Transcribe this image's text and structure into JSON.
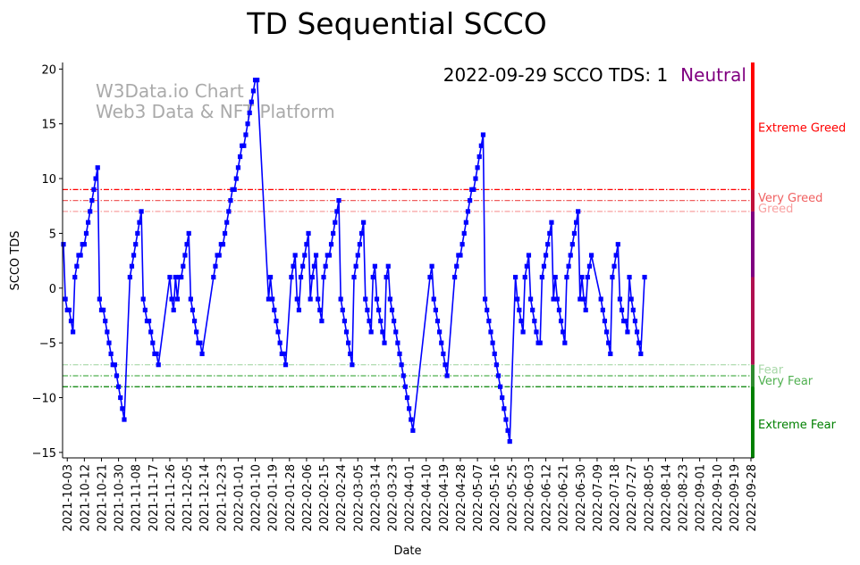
{
  "chart_data": {
    "type": "line",
    "title": "TD Sequential SCCO",
    "xlabel": "Date",
    "ylabel": "SCCO TDS",
    "ylim": [
      -15.5,
      20.6
    ],
    "yticks": [
      -15,
      -10,
      -5,
      0,
      5,
      10,
      15,
      20
    ],
    "xticks": [
      "2021-10-03",
      "2021-10-12",
      "2021-10-21",
      "2021-10-30",
      "2021-11-08",
      "2021-11-17",
      "2021-11-26",
      "2021-12-05",
      "2021-12-14",
      "2021-12-23",
      "2022-01-01",
      "2022-01-10",
      "2022-01-19",
      "2022-01-28",
      "2022-02-06",
      "2022-02-15",
      "2022-02-24",
      "2022-03-05",
      "2022-03-14",
      "2022-03-23",
      "2022-04-01",
      "2022-04-10",
      "2022-04-19",
      "2022-04-28",
      "2022-05-07",
      "2022-05-16",
      "2022-05-25",
      "2022-06-03",
      "2022-06-12",
      "2022-06-21",
      "2022-06-30",
      "2022-07-09",
      "2022-07-18",
      "2022-07-27",
      "2022-08-05",
      "2022-08-14",
      "2022-08-23",
      "2022-09-01",
      "2022-09-10",
      "2022-09-19",
      "2022-09-28"
    ],
    "watermark": [
      "W3Data.io Chart",
      "Web3 Data & NFT Platform"
    ],
    "status": {
      "prefix": "2022-09-29 SCCO TDS: 1",
      "label": "Neutral",
      "label_color": "#800080"
    },
    "levels": [
      {
        "name": "Extreme Greed",
        "value": 9,
        "color": "#ff0000",
        "label_value": 14.7
      },
      {
        "name": "Very Greed",
        "value": 8,
        "color": "#f06060",
        "label_value": 8.3
      },
      {
        "name": "Greed",
        "value": 7,
        "color": "#f8a0a0",
        "label_value": 7.3
      },
      {
        "name": "Fear",
        "value": -7,
        "color": "#a8d8a8",
        "label_value": -7.4
      },
      {
        "name": "Very Fear",
        "value": -8,
        "color": "#50b050",
        "label_value": -8.4
      },
      {
        "name": "Extreme Fear",
        "value": -9,
        "color": "#008000",
        "label_value": -12.4
      }
    ],
    "side_bar": [
      {
        "from": 9,
        "to": 20.6,
        "color": "#ff0000"
      },
      {
        "from": 7,
        "to": 9,
        "color": "#c0103a"
      },
      {
        "from": 1,
        "to": 7,
        "color": "#800080"
      },
      {
        "from": -7,
        "to": 1,
        "color": "#b01050"
      },
      {
        "from": -9,
        "to": -7,
        "color": "#2e8b2e"
      },
      {
        "from": -15.5,
        "to": -9,
        "color": "#008000"
      }
    ],
    "series": [
      {
        "color": "#0000ff",
        "start_date": "2021-10-01",
        "segments": [
          {
            "x": 0,
            "y": [
              4,
              -1,
              -2,
              -2,
              -3,
              -4,
              1,
              2,
              3,
              3,
              4,
              4,
              5,
              6,
              7,
              8,
              9,
              10,
              11,
              -1,
              -2,
              -2,
              -3,
              -4,
              -5,
              -6,
              -7,
              -7,
              -8,
              -9,
              -10,
              -11,
              -12
            ]
          },
          {
            "x": 35,
            "y": [
              1,
              2,
              3,
              4,
              5,
              6,
              7,
              -1,
              -2,
              -3,
              -3,
              -4,
              -5,
              -6,
              -6,
              -7
            ]
          },
          {
            "x": 56,
            "y": [
              1,
              -1,
              -2,
              1,
              -1,
              1,
              1,
              2,
              3,
              4,
              5,
              -1,
              -2,
              -3,
              -4,
              -5,
              -5,
              -6
            ]
          },
          {
            "x": 79,
            "y": [
              1,
              2,
              3,
              3,
              4,
              4,
              5,
              6,
              7,
              8,
              9,
              9,
              10,
              11,
              12,
              13,
              13,
              14,
              15,
              16,
              17,
              18,
              19,
              19
            ]
          },
          {
            "x": 108,
            "y": [
              -1,
              1,
              -1,
              -2,
              -3,
              -4,
              -5,
              -6,
              -6,
              -7
            ]
          },
          {
            "x": 120,
            "y": [
              1,
              2,
              3,
              -1,
              -2,
              1,
              2,
              3,
              4,
              5,
              -1,
              1,
              2,
              3,
              -1,
              -2,
              -3,
              1,
              2,
              3,
              3,
              4,
              5,
              6,
              7,
              8,
              -1,
              -2,
              -3,
              -4,
              -5,
              -6,
              -7,
              1,
              2,
              3,
              4,
              5,
              6,
              -1,
              -2,
              -3,
              -4,
              1,
              2,
              -1,
              -2,
              -3,
              -4,
              -5,
              1,
              2,
              -1,
              -2,
              -3,
              -4,
              -5,
              -6,
              -7,
              -8,
              -9,
              -10,
              -11,
              -12,
              -13
            ]
          },
          {
            "x": 193,
            "y": [
              1,
              2,
              -1,
              -2,
              -3,
              -4,
              -5,
              -6,
              -7,
              -8
            ]
          },
          {
            "x": 206,
            "y": [
              1,
              2,
              3,
              3,
              4,
              5,
              6,
              7,
              8,
              9,
              9,
              10,
              11,
              12,
              13,
              14,
              -1,
              -2,
              -3,
              -4,
              -5,
              -6,
              -7,
              -8,
              -9,
              -10,
              -11,
              -12,
              -13,
              -14
            ]
          },
          {
            "x": 238,
            "y": [
              1,
              -1,
              -2,
              -3,
              -4,
              1,
              2,
              3,
              -1,
              -2,
              -3,
              -4,
              -5,
              -5,
              1,
              2,
              3,
              4,
              5,
              6,
              -1,
              1,
              -1,
              -2,
              -3,
              -4,
              -5,
              1,
              2,
              3,
              4,
              5,
              6,
              7,
              -1,
              1,
              -1,
              -2,
              1,
              2,
              3
            ]
          },
          {
            "x": 283,
            "y": [
              -1,
              -2,
              -3,
              -4,
              -5,
              -6,
              1,
              2,
              3,
              4,
              -1,
              -2,
              -3,
              -3,
              -4,
              1,
              -1,
              -2,
              -3,
              -4,
              -5,
              -6
            ]
          },
          {
            "x": 306,
            "y": [
              1
            ]
          }
        ]
      }
    ]
  }
}
